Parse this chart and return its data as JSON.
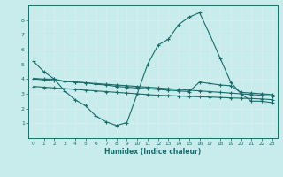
{
  "xlabel": "Humidex (Indice chaleur)",
  "bg_color": "#c8ecec",
  "grid_color": "#e8f8f8",
  "line_color": "#1a6b6b",
  "line1_x": [
    0,
    1,
    2,
    3,
    4,
    5,
    6,
    7,
    8,
    9,
    10,
    11,
    12,
    13,
    14,
    15,
    16,
    17,
    18,
    19,
    20,
    21,
    22,
    23
  ],
  "line1_y": [
    5.2,
    4.5,
    4.0,
    3.2,
    2.6,
    2.2,
    1.5,
    1.1,
    0.85,
    1.05,
    3.0,
    5.0,
    6.3,
    6.7,
    7.7,
    8.2,
    8.5,
    7.0,
    5.4,
    3.8,
    3.0,
    2.5,
    2.5,
    2.4
  ],
  "line2_x": [
    0,
    1,
    2,
    3,
    4,
    5,
    6,
    7,
    8,
    9,
    10,
    11,
    12,
    13,
    14,
    15,
    16,
    17,
    18,
    19,
    20,
    21,
    22,
    23
  ],
  "line2_y": [
    4.05,
    4.0,
    4.0,
    3.85,
    3.8,
    3.75,
    3.65,
    3.6,
    3.5,
    3.45,
    3.4,
    3.35,
    3.3,
    3.25,
    3.2,
    3.15,
    3.8,
    3.7,
    3.6,
    3.55,
    3.1,
    3.05,
    3.0,
    2.95
  ],
  "line3_x": [
    0,
    1,
    2,
    3,
    4,
    5,
    6,
    7,
    8,
    9,
    10,
    11,
    12,
    13,
    14,
    15,
    16,
    17,
    18,
    19,
    20,
    21,
    22,
    23
  ],
  "line3_y": [
    3.5,
    3.45,
    3.4,
    3.35,
    3.3,
    3.25,
    3.2,
    3.15,
    3.1,
    3.05,
    3.0,
    2.95,
    2.9,
    2.88,
    2.85,
    2.82,
    2.8,
    2.78,
    2.75,
    2.72,
    2.7,
    2.68,
    2.65,
    2.6
  ],
  "line4_x": [
    0,
    1,
    2,
    3,
    4,
    5,
    6,
    7,
    8,
    9,
    10,
    11,
    12,
    13,
    14,
    15,
    16,
    17,
    18,
    19,
    20,
    21,
    22,
    23
  ],
  "line4_y": [
    4.0,
    3.95,
    3.9,
    3.85,
    3.8,
    3.75,
    3.7,
    3.65,
    3.6,
    3.55,
    3.5,
    3.45,
    3.4,
    3.35,
    3.3,
    3.25,
    3.2,
    3.15,
    3.1,
    3.05,
    3.0,
    2.95,
    2.9,
    2.85
  ],
  "xlim": [
    -0.5,
    23.5
  ],
  "ylim": [
    0,
    9
  ],
  "yticks": [
    1,
    2,
    3,
    4,
    5,
    6,
    7,
    8
  ],
  "xticks": [
    0,
    1,
    2,
    3,
    4,
    5,
    6,
    7,
    8,
    9,
    10,
    11,
    12,
    13,
    14,
    15,
    16,
    17,
    18,
    19,
    20,
    21,
    22,
    23
  ]
}
